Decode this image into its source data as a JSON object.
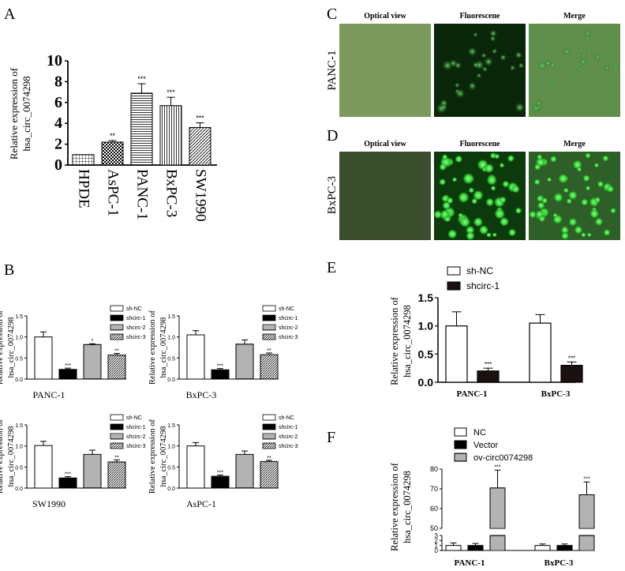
{
  "panel_letters": {
    "A": "A",
    "B": "B",
    "C": "C",
    "D": "D",
    "E": "E",
    "F": "F"
  },
  "ylabel_line1": "Relative expression of",
  "ylabel_line2": "hsa_circ_0074298",
  "microscopy": {
    "headers": [
      "Optical view",
      "Fluorescene",
      "Merge"
    ],
    "row_c_label": "PANC-1",
    "row_d_label": "BxPC-3",
    "colors": {
      "optical_c": "#7c9a5e",
      "optical_d": "#3a4d2c",
      "fluor_dark": "#0a260a",
      "fluor_bright": "#2fcf2f",
      "merge_c": "#5f8f4a",
      "merge_d": "#2f6f2a"
    }
  },
  "chart_data": [
    {
      "id": "A",
      "type": "bar",
      "categories": [
        "HPDE",
        "AsPC-1",
        "PANC-1",
        "BxPC-3",
        "SW1990"
      ],
      "values": [
        1.0,
        2.2,
        6.9,
        5.7,
        3.6
      ],
      "errors": [
        0.0,
        0.15,
        0.9,
        0.8,
        0.45
      ],
      "sig": [
        "",
        "**",
        "***",
        "***",
        "***"
      ],
      "patterns": [
        "grid",
        "checker",
        "hlines",
        "vlines",
        "diag"
      ],
      "ylim": [
        0,
        10
      ],
      "yticks": [
        0,
        2,
        4,
        6,
        8,
        10
      ]
    },
    {
      "id": "B1",
      "type": "bar",
      "title": "PANC-1",
      "series_names": [
        "sh-NC",
        "shcirc-1",
        "shcirc-2",
        "shcirc-3"
      ],
      "values": [
        1.0,
        0.23,
        0.82,
        0.57
      ],
      "errors": [
        0.12,
        0.03,
        0.02,
        0.04
      ],
      "sig": [
        "",
        "***",
        "*",
        "**"
      ],
      "ylim": [
        0,
        1.5
      ],
      "yticks": [
        "0.0",
        "0.5",
        "1.0",
        "1.5"
      ]
    },
    {
      "id": "B2",
      "type": "bar",
      "title": "BxPC-3",
      "series_names": [
        "sh-NC",
        "shcirc-1",
        "shcirc-2",
        "shcirc-3"
      ],
      "values": [
        1.05,
        0.22,
        0.83,
        0.58
      ],
      "errors": [
        0.1,
        0.03,
        0.1,
        0.04
      ],
      "sig": [
        "",
        "***",
        "",
        "**"
      ],
      "ylim": [
        0,
        1.5
      ],
      "yticks": [
        "0.0",
        "0.5",
        "1.0",
        "1.5"
      ]
    },
    {
      "id": "B3",
      "type": "bar",
      "title": "SW1990",
      "series_names": [
        "sh-NC",
        "shcirc-1",
        "shcirc-2",
        "shcirc-3"
      ],
      "values": [
        1.01,
        0.24,
        0.8,
        0.62
      ],
      "errors": [
        0.1,
        0.03,
        0.1,
        0.05
      ],
      "sig": [
        "",
        "***",
        "",
        "**"
      ],
      "ylim": [
        0,
        1.5
      ],
      "yticks": [
        "0.0",
        "0.5",
        "1.0",
        "1.5"
      ]
    },
    {
      "id": "B4",
      "type": "bar",
      "title": "AsPC-1",
      "series_names": [
        "sh-NC",
        "shcirc-1",
        "shcirc-2",
        "shcirc-3"
      ],
      "values": [
        1.0,
        0.28,
        0.8,
        0.63
      ],
      "errors": [
        0.08,
        0.03,
        0.08,
        0.03
      ],
      "sig": [
        "",
        "***",
        "",
        "**"
      ],
      "ylim": [
        0,
        1.5
      ],
      "yticks": [
        "0.0",
        "0.5",
        "1.0",
        "1.5"
      ]
    },
    {
      "id": "E",
      "type": "bar",
      "categories": [
        "PANC-1",
        "BxPC-3"
      ],
      "series": [
        {
          "name": "sh-NC",
          "values": [
            1.0,
            1.05
          ],
          "errors": [
            0.25,
            0.15
          ]
        },
        {
          "name": "shcirc-1",
          "values": [
            0.2,
            0.3
          ],
          "errors": [
            0.05,
            0.06
          ]
        }
      ],
      "sig": [
        "***",
        "***"
      ],
      "ylim": [
        0,
        1.5
      ],
      "yticks": [
        "0.0",
        "0.5",
        "1.0",
        "1.5"
      ]
    },
    {
      "id": "F",
      "type": "bar",
      "categories": [
        "PANC-1",
        "BxPC-3"
      ],
      "series": [
        {
          "name": "NC",
          "values": [
            1.0,
            1.0
          ],
          "errors": [
            0.5,
            0.3
          ]
        },
        {
          "name": "Vector",
          "values": [
            1.0,
            1.0
          ],
          "errors": [
            0.4,
            0.3
          ]
        },
        {
          "name": "ov-circ0074298",
          "values": [
            70.5,
            67.0
          ],
          "errors": [
            9.0,
            6.5
          ]
        }
      ],
      "sig": [
        "***",
        "***"
      ],
      "axis_break": {
        "lower": [
          0,
          3
        ],
        "upper": [
          50,
          80
        ]
      },
      "yticks_lower": [
        "0",
        "1",
        "2",
        "3"
      ],
      "yticks_upper": [
        "50",
        "60",
        "70",
        "80"
      ]
    }
  ]
}
